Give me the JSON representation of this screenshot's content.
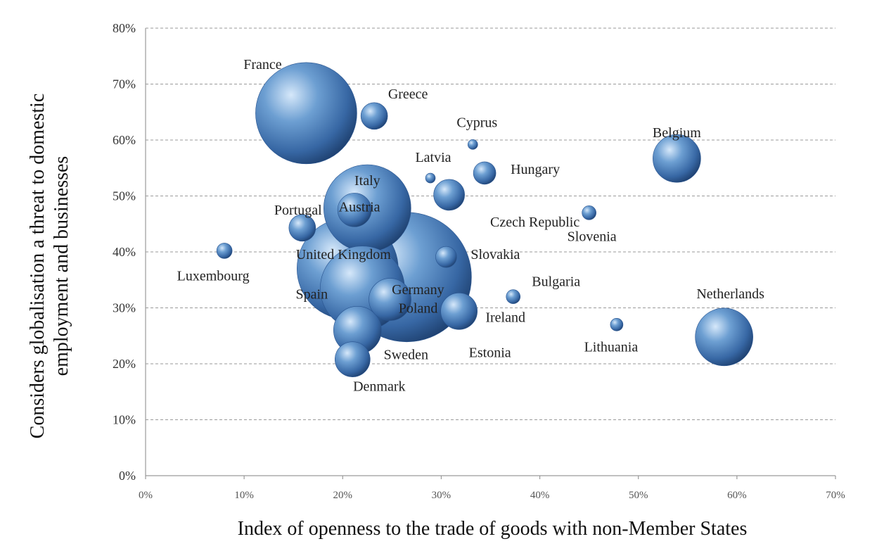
{
  "chart_data": {
    "type": "scatter",
    "subtype": "bubble",
    "xlabel": "Index of openness to the trade of goods with non-Member States",
    "ylabel_lines": [
      "Considers globalisation a threat to domestic",
      "employment and businesses"
    ],
    "xlim": [
      0,
      70
    ],
    "ylim": [
      0,
      80
    ],
    "x_ticks": [
      "0%",
      "10%",
      "20%",
      "30%",
      "40%",
      "50%",
      "60%",
      "70%"
    ],
    "y_ticks": [
      "0%",
      "10%",
      "20%",
      "30%",
      "40%",
      "50%",
      "60%",
      "70%",
      "80%"
    ],
    "grid": true,
    "colors": {
      "bubble": "#3d6fae",
      "bubble_light": "#cfe3f7",
      "bubble_dark": "#1c3d6b"
    },
    "points": [
      {
        "label": "France",
        "x": 16.3,
        "y": 64.8,
        "r": 72
      },
      {
        "label": "Italy",
        "x": 22.5,
        "y": 47.8,
        "r": 62
      },
      {
        "label": "Austria",
        "x": 21.2,
        "y": 47.5,
        "r": 24
      },
      {
        "label": "Germany",
        "x": 26.5,
        "y": 35.5,
        "r": 92
      },
      {
        "label": "United Kingdom",
        "x": 20.5,
        "y": 37.0,
        "r": 72
      },
      {
        "label": "Spain",
        "x": 22.0,
        "y": 33.5,
        "r": 60
      },
      {
        "label": "Poland",
        "x": 24.8,
        "y": 31.5,
        "r": 30
      },
      {
        "label": "Sweden",
        "x": 21.5,
        "y": 26.0,
        "r": 34
      },
      {
        "label": "Denmark",
        "x": 21.0,
        "y": 20.8,
        "r": 25
      },
      {
        "label": "Greece",
        "x": 23.2,
        "y": 64.3,
        "r": 19
      },
      {
        "label": "Cyprus",
        "x": 33.2,
        "y": 59.2,
        "r": 7
      },
      {
        "label": "Latvia",
        "x": 28.9,
        "y": 53.2,
        "r": 7
      },
      {
        "label": "Hungary",
        "x": 34.4,
        "y": 54.1,
        "r": 16
      },
      {
        "label": "Czech Republic",
        "x": 30.8,
        "y": 50.2,
        "r": 22
      },
      {
        "label": "Portugal",
        "x": 15.9,
        "y": 44.3,
        "r": 19
      },
      {
        "label": "Luxembourg",
        "x": 8.0,
        "y": 40.2,
        "r": 11
      },
      {
        "label": "Slovakia",
        "x": 30.5,
        "y": 39.1,
        "r": 15
      },
      {
        "label": "Slovenia",
        "x": 45.0,
        "y": 47.0,
        "r": 10
      },
      {
        "label": "Belgium",
        "x": 53.9,
        "y": 56.7,
        "r": 34
      },
      {
        "label": "Bulgaria",
        "x": 37.3,
        "y": 32.0,
        "r": 10
      },
      {
        "label": "Ireland",
        "x": 31.8,
        "y": 29.4,
        "r": 26
      },
      {
        "label": "Estonia",
        "x": 31.8,
        "y": 29.4,
        "r": 0
      },
      {
        "label": "Lithuania",
        "x": 47.8,
        "y": 27.0,
        "r": 9
      },
      {
        "label": "Netherlands",
        "x": 58.7,
        "y": 24.8,
        "r": 41
      }
    ],
    "label_offsets": {
      "France": [
        -62,
        -70
      ],
      "Greece": [
        48,
        -32
      ],
      "Cyprus": [
        6,
        -32
      ],
      "Latvia": [
        4,
        -30
      ],
      "Hungary": [
        72,
        -6
      ],
      "Czech Republic": [
        122,
        38
      ],
      "Italy": [
        0,
        -40
      ],
      "Austria": [
        7,
        -5
      ],
      "Portugal": [
        -6,
        -26
      ],
      "Luxembourg": [
        -16,
        35
      ],
      "United Kingdom": [
        -6,
        -21
      ],
      "Germany": [
        16,
        17
      ],
      "Slovakia": [
        70,
        -4
      ],
      "Slovenia": [
        4,
        33
      ],
      "Belgium": [
        0,
        -37
      ],
      "Bulgaria": [
        61,
        -22
      ],
      "Spain": [
        -72,
        8
      ],
      "Poland": [
        40,
        12
      ],
      "Ireland": [
        66,
        8
      ],
      "Sweden": [
        69,
        34
      ],
      "Estonia": [
        44,
        58
      ],
      "Lithuania": [
        -8,
        31
      ],
      "Netherlands": [
        9,
        -62
      ],
      "Denmark": [
        38,
        38
      ]
    }
  }
}
